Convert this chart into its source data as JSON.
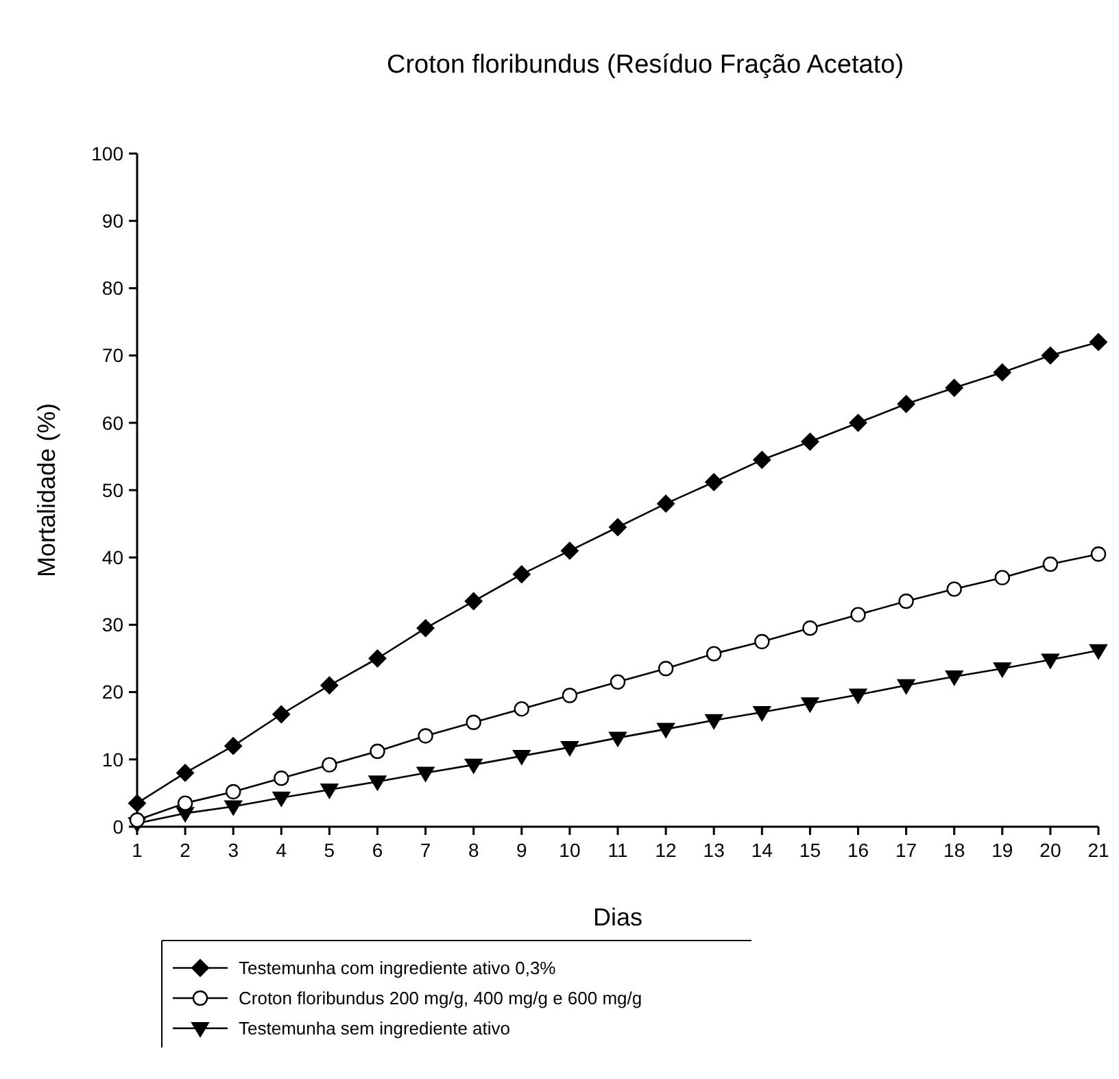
{
  "chart_data": {
    "type": "line",
    "title": "Croton floribundus (Resíduo Fração Acetato)",
    "xlabel": "Dias",
    "ylabel": "Mortalidade (%)",
    "x": [
      1,
      2,
      3,
      4,
      5,
      6,
      7,
      8,
      9,
      10,
      11,
      12,
      13,
      14,
      15,
      16,
      17,
      18,
      19,
      20,
      21
    ],
    "xlim": [
      1,
      21
    ],
    "xticks": [
      1,
      2,
      3,
      4,
      5,
      6,
      7,
      8,
      9,
      10,
      11,
      12,
      13,
      14,
      15,
      16,
      17,
      18,
      19,
      20,
      21
    ],
    "ylim": [
      0,
      100
    ],
    "yticks": [
      0,
      10,
      20,
      30,
      40,
      50,
      60,
      70,
      80,
      90,
      100
    ],
    "legend": "bottom",
    "grid": false,
    "series": [
      {
        "name": "Testemunha com ingrediente ativo 0,3%",
        "color": "#000000",
        "marker": "diamond",
        "values": [
          3.5,
          8,
          12,
          16.7,
          21,
          25,
          29.5,
          33.5,
          37.5,
          41,
          44.5,
          48,
          51.2,
          54.5,
          57.2,
          60,
          62.8,
          65.2,
          67.5,
          70,
          72
        ]
      },
      {
        "name": "Croton floribundus 200 mg/g, 400 mg/g e 600 mg/g",
        "color": "#000000",
        "marker": "circle",
        "values": [
          1,
          3.5,
          5.2,
          7.2,
          9.2,
          11.2,
          13.5,
          15.5,
          17.5,
          19.5,
          21.5,
          23.5,
          25.7,
          27.5,
          29.5,
          31.5,
          33.5,
          35.3,
          37,
          39,
          40.5
        ]
      },
      {
        "name": "Testemunha sem ingrediente ativo",
        "color": "#000000",
        "marker": "triangle",
        "values": [
          0.5,
          2,
          3,
          4.3,
          5.5,
          6.7,
          8,
          9.2,
          10.5,
          11.8,
          13.2,
          14.5,
          15.8,
          17,
          18.3,
          19.6,
          21,
          22.3,
          23.5,
          24.8,
          26.2
        ]
      }
    ]
  }
}
